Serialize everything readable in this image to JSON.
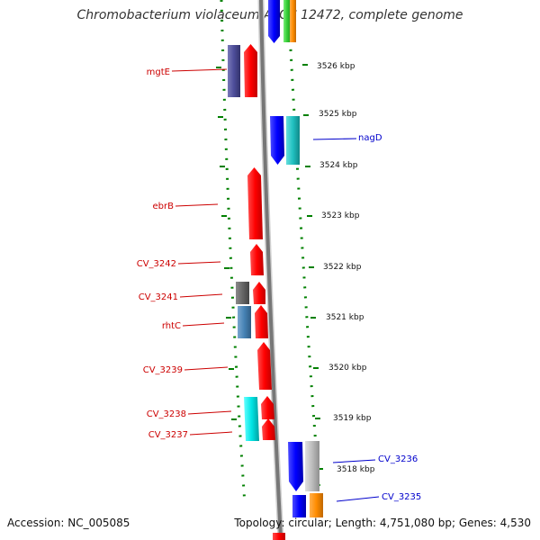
{
  "title": "Chromobacterium violaceum ATCC 12472, complete genome",
  "accession": "Accession: NC_005085",
  "summary": "Topology: circular; Length: 4,751,080 bp; Genes: 4,530",
  "ticks": [
    {
      "label": "3526 kbp"
    },
    {
      "label": "3525 kbp"
    },
    {
      "label": "3524 kbp"
    },
    {
      "label": "3523 kbp"
    },
    {
      "label": "3522 kbp"
    },
    {
      "label": "3521 kbp"
    },
    {
      "label": "3520 kbp"
    },
    {
      "label": "3519 kbp"
    },
    {
      "label": "3518 kbp"
    }
  ],
  "left_genes": [
    {
      "name": "mgtE",
      "color": "#cc0000"
    },
    {
      "name": "ebrB",
      "color": "#cc0000"
    },
    {
      "name": "CV_3242",
      "color": "#cc0000"
    },
    {
      "name": "CV_3241",
      "color": "#cc0000"
    },
    {
      "name": "rhtC",
      "color": "#cc0000"
    },
    {
      "name": "CV_3239",
      "color": "#cc0000"
    },
    {
      "name": "CV_3238",
      "color": "#cc0000"
    },
    {
      "name": "CV_3237",
      "color": "#cc0000"
    }
  ],
  "right_genes": [
    {
      "name": "nagD",
      "color": "#0000cc"
    },
    {
      "name": "CV_3236",
      "color": "#0000cc"
    },
    {
      "name": "CV_3235",
      "color": "#0000cc"
    }
  ],
  "colors": {
    "forward_gene": "#ff0000",
    "reverse_gene": "#0000ff",
    "cyan_feature": "#00cccc",
    "slate_feature": "#4d4d99",
    "grey_feature": "#666666",
    "steelblue_feature": "#4682b4",
    "silver_feature": "#bbbbbb",
    "orange_feature": "#ff8c00",
    "green_feature": "#33cc33",
    "backbone": "#888888",
    "dotted_track": "#008000",
    "label_forward": "#cc0000",
    "label_reverse": "#0000cc"
  }
}
